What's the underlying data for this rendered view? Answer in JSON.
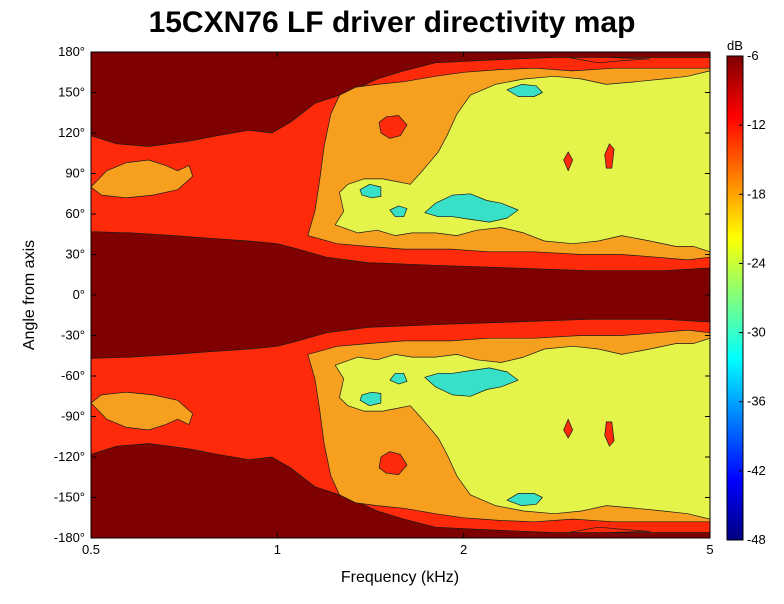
{
  "chart_data": {
    "type": "heatmap",
    "title": "15CXN76 LF driver directivity map",
    "xlabel": "Frequency (kHz)",
    "ylabel": "Angle from axis",
    "x_scale": "log",
    "xlim": [
      0.5,
      5
    ],
    "ylim": [
      -180,
      180
    ],
    "x_ticks": [
      {
        "value": 0.5,
        "label": "0.5"
      },
      {
        "value": 1,
        "label": "1"
      },
      {
        "value": 2,
        "label": "2"
      },
      {
        "value": 5,
        "label": "5"
      }
    ],
    "y_ticks": [
      {
        "value": 180,
        "label": "180°"
      },
      {
        "value": 150,
        "label": "150°"
      },
      {
        "value": 120,
        "label": "120°"
      },
      {
        "value": 90,
        "label": "90°"
      },
      {
        "value": 60,
        "label": "60°"
      },
      {
        "value": 30,
        "label": "30°"
      },
      {
        "value": 0,
        "label": "0°"
      },
      {
        "value": -30,
        "label": "-30°"
      },
      {
        "value": -60,
        "label": "-60°"
      },
      {
        "value": -90,
        "label": "-90°"
      },
      {
        "value": -120,
        "label": "-120°"
      },
      {
        "value": -150,
        "label": "-150°"
      },
      {
        "value": -180,
        "label": "-180°"
      }
    ],
    "colorbar": {
      "title": "dB",
      "range": [
        -48,
        -6
      ],
      "ticks": [
        {
          "value": -6,
          "label": "-6"
        },
        {
          "value": -12,
          "label": "-12"
        },
        {
          "value": -18,
          "label": "-18"
        },
        {
          "value": -24,
          "label": "-24"
        },
        {
          "value": -30,
          "label": "-30"
        },
        {
          "value": -36,
          "label": "-36"
        },
        {
          "value": -42,
          "label": "-42"
        },
        {
          "value": -48,
          "label": "-48"
        }
      ],
      "colors": [
        "#00007f",
        "#0000ff",
        "#007fff",
        "#00ffff",
        "#7fff7f",
        "#ffff00",
        "#ff7f00",
        "#ff0000",
        "#7f0000"
      ]
    },
    "levels": [
      {
        "name": "-6 to -12 dB",
        "color": "#7f0000"
      },
      {
        "name": "-12 to -18 dB",
        "color": "#ff2a0a"
      },
      {
        "name": "-18 to -24 dB",
        "color": "#f7a020"
      },
      {
        "name": "-24 to -30 dB",
        "color": "#e4f44a"
      },
      {
        "name": "-30 to -36 dB",
        "color": "#38e0c8"
      }
    ],
    "regions_upper": [
      {
        "level": 1,
        "points": [
          [
            0.5,
            118
          ],
          [
            0.55,
            112
          ],
          [
            0.62,
            110
          ],
          [
            0.72,
            114
          ],
          [
            0.8,
            118
          ],
          [
            0.9,
            122
          ],
          [
            0.98,
            120
          ],
          [
            1.05,
            128
          ],
          [
            1.15,
            142
          ],
          [
            1.3,
            150
          ],
          [
            1.45,
            160
          ],
          [
            1.6,
            166
          ],
          [
            1.8,
            172
          ],
          [
            2.2,
            174
          ],
          [
            2.8,
            176
          ],
          [
            3.5,
            176
          ],
          [
            4.2,
            176
          ],
          [
            5,
            176
          ],
          [
            5,
            20
          ],
          [
            4.2,
            18
          ],
          [
            3.2,
            18
          ],
          [
            2.4,
            20
          ],
          [
            1.8,
            22
          ],
          [
            1.4,
            24
          ],
          [
            1.2,
            28
          ],
          [
            1.08,
            34
          ],
          [
            1.0,
            38
          ],
          [
            0.9,
            40
          ],
          [
            0.78,
            42
          ],
          [
            0.68,
            44
          ],
          [
            0.58,
            46
          ],
          [
            0.5,
            47
          ]
        ]
      },
      {
        "level": 2,
        "points": [
          [
            0.5,
            80
          ],
          [
            0.53,
            92
          ],
          [
            0.57,
            98
          ],
          [
            0.62,
            100
          ],
          [
            0.66,
            96
          ],
          [
            0.69,
            92
          ],
          [
            0.72,
            96
          ],
          [
            0.73,
            88
          ],
          [
            0.69,
            78
          ],
          [
            0.63,
            74
          ],
          [
            0.57,
            72
          ],
          [
            0.52,
            74
          ]
        ]
      },
      {
        "level": 2,
        "points": [
          [
            1.12,
            44
          ],
          [
            1.15,
            62
          ],
          [
            1.17,
            84
          ],
          [
            1.19,
            110
          ],
          [
            1.22,
            134
          ],
          [
            1.26,
            148
          ],
          [
            1.34,
            154
          ],
          [
            1.45,
            156
          ],
          [
            1.6,
            158
          ],
          [
            1.8,
            162
          ],
          [
            2.0,
            165
          ],
          [
            2.3,
            167
          ],
          [
            2.6,
            168
          ],
          [
            3.0,
            166
          ],
          [
            3.5,
            168
          ],
          [
            4.1,
            168
          ],
          [
            5,
            168
          ],
          [
            5,
            28
          ],
          [
            4.6,
            26
          ],
          [
            4.1,
            28
          ],
          [
            3.6,
            30
          ],
          [
            3.1,
            30
          ],
          [
            2.6,
            32
          ],
          [
            2.2,
            32
          ],
          [
            1.9,
            34
          ],
          [
            1.6,
            34
          ],
          [
            1.4,
            36
          ],
          [
            1.25,
            38
          ]
        ]
      },
      {
        "level": 3,
        "points": [
          [
            1.24,
            52
          ],
          [
            1.28,
            62
          ],
          [
            1.26,
            76
          ],
          [
            1.3,
            82
          ],
          [
            1.38,
            86
          ],
          [
            1.48,
            86
          ],
          [
            1.56,
            84
          ],
          [
            1.64,
            82
          ],
          [
            1.7,
            90
          ],
          [
            1.76,
            98
          ],
          [
            1.82,
            106
          ],
          [
            1.88,
            118
          ],
          [
            1.95,
            134
          ],
          [
            2.05,
            148
          ],
          [
            2.25,
            156
          ],
          [
            2.5,
            160
          ],
          [
            2.8,
            162
          ],
          [
            3.1,
            160
          ],
          [
            3.4,
            156
          ],
          [
            3.8,
            158
          ],
          [
            4.2,
            160
          ],
          [
            4.6,
            162
          ],
          [
            5,
            166
          ],
          [
            5,
            32
          ],
          [
            4.7,
            36
          ],
          [
            4.4,
            36
          ],
          [
            4.0,
            40
          ],
          [
            3.6,
            44
          ],
          [
            3.3,
            40
          ],
          [
            3.0,
            38
          ],
          [
            2.7,
            40
          ],
          [
            2.5,
            46
          ],
          [
            2.3,
            50
          ],
          [
            2.1,
            48
          ],
          [
            1.95,
            44
          ],
          [
            1.8,
            46
          ],
          [
            1.65,
            46
          ],
          [
            1.55,
            44
          ],
          [
            1.45,
            48
          ],
          [
            1.35,
            46
          ]
        ]
      },
      {
        "level": 4,
        "points": [
          [
            1.73,
            61
          ],
          [
            1.8,
            68
          ],
          [
            1.92,
            74
          ],
          [
            2.05,
            75
          ],
          [
            2.18,
            70
          ],
          [
            2.3,
            68
          ],
          [
            2.45,
            63
          ],
          [
            2.35,
            57
          ],
          [
            2.2,
            54
          ],
          [
            2.05,
            56
          ],
          [
            1.92,
            58
          ],
          [
            1.82,
            58
          ]
        ]
      },
      {
        "level": 4,
        "points": [
          [
            1.36,
            78
          ],
          [
            1.41,
            82
          ],
          [
            1.47,
            80
          ],
          [
            1.47,
            73
          ],
          [
            1.42,
            72
          ],
          [
            1.37,
            74
          ]
        ]
      },
      {
        "level": 4,
        "points": [
          [
            1.52,
            63
          ],
          [
            1.57,
            66
          ],
          [
            1.62,
            64
          ],
          [
            1.6,
            58
          ],
          [
            1.55,
            58
          ]
        ]
      },
      {
        "level": 4,
        "points": [
          [
            2.35,
            152
          ],
          [
            2.48,
            156
          ],
          [
            2.62,
            155
          ],
          [
            2.68,
            150
          ],
          [
            2.6,
            147
          ],
          [
            2.45,
            147
          ]
        ]
      },
      {
        "level": 1,
        "points": [
          [
            1.46,
            128
          ],
          [
            1.5,
            132
          ],
          [
            1.57,
            133
          ],
          [
            1.62,
            126
          ],
          [
            1.58,
            118
          ],
          [
            1.52,
            116
          ],
          [
            1.47,
            120
          ]
        ]
      },
      {
        "level": 1,
        "points": [
          [
            3.38,
            104
          ],
          [
            3.44,
            112
          ],
          [
            3.5,
            108
          ],
          [
            3.47,
            94
          ],
          [
            3.4,
            94
          ]
        ]
      },
      {
        "level": 1,
        "points": [
          [
            2.9,
            100
          ],
          [
            2.95,
            106
          ],
          [
            3.0,
            100
          ],
          [
            2.95,
            92
          ]
        ]
      },
      {
        "level": 1,
        "points": [
          [
            2.95,
            176
          ],
          [
            3.3,
            172
          ],
          [
            3.7,
            174
          ],
          [
            4.0,
            175
          ],
          [
            3.4,
            176
          ]
        ]
      }
    ]
  }
}
